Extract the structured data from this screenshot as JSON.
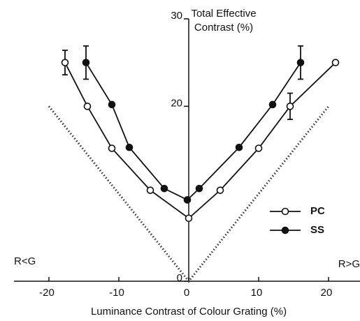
{
  "chart_data": {
    "type": "line",
    "ylabel": "Total Effective",
    "ylabel2": "Contrast (%)",
    "xlabel": "Luminance Contrast of Colour Grating (%)",
    "annotations": [
      "R<G",
      "R>G"
    ],
    "xlim": [
      -25,
      24.5
    ],
    "xticks": [
      -20,
      -10,
      0,
      10,
      20
    ],
    "ylim": [
      0,
      30
    ],
    "yticks": [
      0,
      20,
      30
    ],
    "legend": "lower right",
    "series": [
      {
        "name": "PC",
        "marker": "open",
        "color": "#111",
        "x": [
          -17.7,
          -14.5,
          -11,
          -5.5,
          0,
          4.5,
          10,
          14.5,
          21
        ],
        "values": [
          25,
          20,
          15.2,
          10.4,
          7.2,
          10.4,
          15.2,
          20,
          25
        ],
        "errors": [
          1.4,
          null,
          null,
          null,
          null,
          null,
          null,
          1.5,
          null
        ]
      },
      {
        "name": "SS",
        "marker": "filled",
        "color": "#111",
        "x": [
          -14.7,
          -11,
          -8.5,
          -3.5,
          -0.2,
          1.5,
          7.2,
          12,
          16
        ],
        "values": [
          25,
          20.2,
          15.3,
          10.6,
          9.3,
          10.6,
          15.3,
          20.2,
          25
        ],
        "errors": [
          1.9,
          null,
          null,
          null,
          null,
          null,
          null,
          null,
          1.9
        ]
      }
    ],
    "reference_lines": [
      {
        "x": [
          -20,
          0,
          20
        ],
        "values": [
          20,
          0,
          20
        ]
      }
    ]
  }
}
